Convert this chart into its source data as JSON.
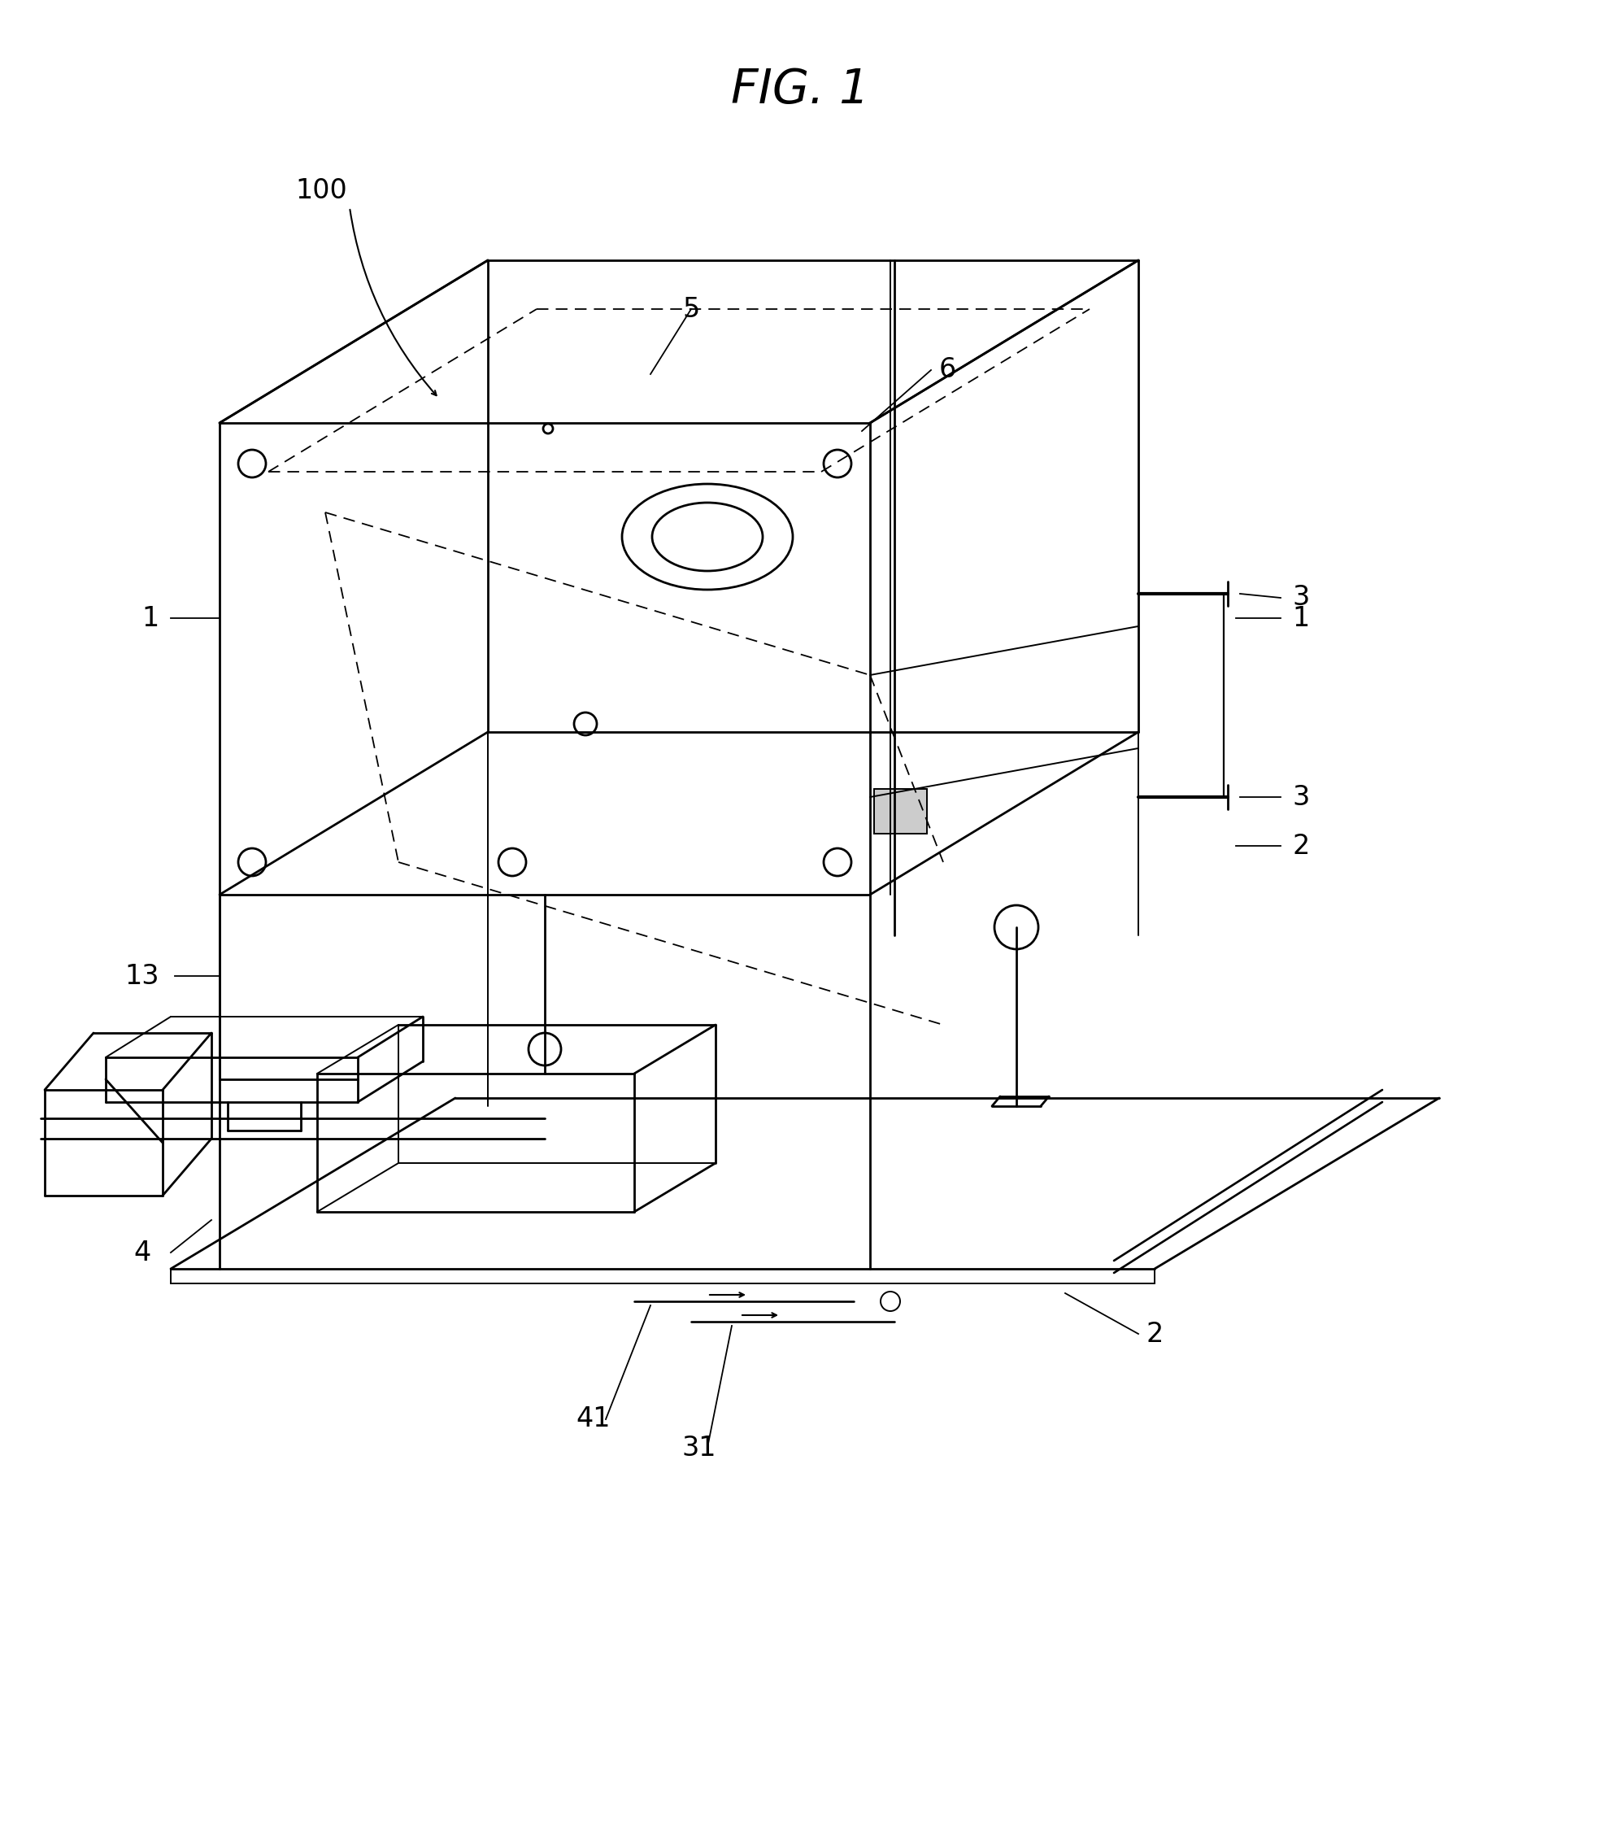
{
  "title": "FIG. 1",
  "title_fontsize": 42,
  "bg_color": "#ffffff",
  "line_color": "#000000",
  "lw_main": 2.0,
  "lw_thin": 1.4,
  "lw_dash": 1.3,
  "fig_width": 19.69,
  "fig_height": 22.5,
  "label_fontsize": 24
}
